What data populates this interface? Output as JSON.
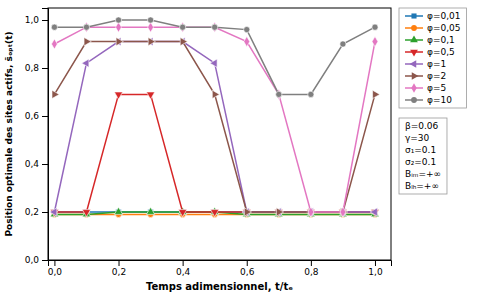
{
  "chart_data": {
    "type": "line",
    "xlabel": "Temps adimensionnel, t/tₑ",
    "ylabel": "Position optimale des sites actifs, s̄ₒₚₜ(t)",
    "x": [
      0.0,
      0.1,
      0.2,
      0.3,
      0.4,
      0.5,
      0.6,
      0.7,
      0.8,
      0.9,
      1.0
    ],
    "series": [
      {
        "name": "φ=0,01",
        "marker": "square",
        "values": [
          0.2,
          0.2,
          0.2,
          0.2,
          0.2,
          0.2,
          0.2,
          0.2,
          0.2,
          0.2,
          0.2
        ]
      },
      {
        "name": "φ=0,05",
        "marker": "circle",
        "values": [
          0.19,
          0.19,
          0.19,
          0.19,
          0.19,
          0.19,
          0.19,
          0.19,
          0.19,
          0.19,
          0.19
        ]
      },
      {
        "name": "φ=0,1",
        "marker": "triangle-up",
        "values": [
          0.19,
          0.19,
          0.2,
          0.2,
          0.2,
          0.2,
          0.19,
          0.19,
          0.19,
          0.19,
          0.19
        ]
      },
      {
        "name": "φ=0,5",
        "marker": "triangle-down",
        "values": [
          0.2,
          0.2,
          0.69,
          0.69,
          0.2,
          0.2,
          0.2,
          0.2,
          0.2,
          0.2,
          0.2
        ]
      },
      {
        "name": "φ=1",
        "marker": "triangle-left",
        "values": [
          0.2,
          0.82,
          0.91,
          0.91,
          0.91,
          0.82,
          0.2,
          0.2,
          0.2,
          0.2,
          0.2
        ]
      },
      {
        "name": "φ=2",
        "marker": "triangle-right",
        "values": [
          0.69,
          0.91,
          0.91,
          0.91,
          0.91,
          0.69,
          0.2,
          0.2,
          0.2,
          0.2,
          0.69
        ]
      },
      {
        "name": "φ=5",
        "marker": "diamond",
        "values": [
          0.9,
          0.97,
          0.97,
          0.97,
          0.97,
          0.97,
          0.91,
          0.69,
          0.2,
          0.2,
          0.91
        ]
      },
      {
        "name": "φ=10",
        "marker": "circle",
        "values": [
          0.97,
          0.97,
          1.0,
          1.0,
          0.97,
          0.97,
          0.96,
          0.69,
          0.69,
          0.9,
          0.97
        ]
      }
    ],
    "xlim": [
      -0.02,
      1.05
    ],
    "ylim": [
      0.0,
      1.05
    ],
    "xticks": [
      {
        "value": 0.0,
        "label": "0,0"
      },
      {
        "value": 0.2,
        "label": "0,2"
      },
      {
        "value": 0.4,
        "label": "0,4"
      },
      {
        "value": 0.6,
        "label": "0,6"
      },
      {
        "value": 0.8,
        "label": "0,8"
      },
      {
        "value": 1.0,
        "label": "1,0"
      }
    ],
    "yticks": [
      {
        "value": 0.0,
        "label": "0,0"
      },
      {
        "value": 0.2,
        "label": "0,2"
      },
      {
        "value": 0.4,
        "label": "0,4"
      },
      {
        "value": 0.6,
        "label": "0,6"
      },
      {
        "value": 0.8,
        "label": "0,8"
      },
      {
        "value": 1.0,
        "label": "1,0"
      }
    ],
    "legend": "right",
    "annotations": [
      "β=0.06",
      "γ=30",
      "σ₁=0.1",
      "σ₂=0.1",
      "Bᵢₘ=+∞",
      "Bₗₕ=+∞"
    ]
  }
}
